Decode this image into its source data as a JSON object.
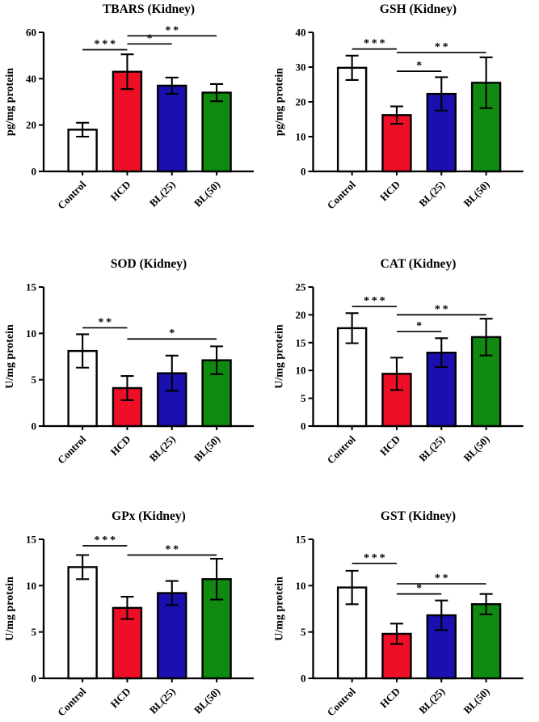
{
  "page": {
    "background": "#ffffff",
    "text_color": "#000000"
  },
  "figure": {
    "layout": "2x3 grid of bar charts",
    "bar_colors": [
      "#ffffff",
      "#ee0f26",
      "#1a10b0",
      "#108a10"
    ],
    "bar_border_color": "#000000",
    "error_bar_color": "#000000"
  },
  "chart_data": [
    {
      "type": "bar",
      "title": "TBARS (Kidney)",
      "xlabel": "",
      "ylabel": "pg/mg protein",
      "ylim": [
        0,
        60
      ],
      "yticks": [
        0,
        20,
        40,
        60
      ],
      "grid": "off",
      "legend": "none",
      "categories": [
        "Control",
        "HCD",
        "BL(25)",
        "BL(50)"
      ],
      "values": [
        18,
        43,
        37,
        34
      ],
      "errors": [
        3,
        7.5,
        3.5,
        3.7
      ],
      "significance": [
        {
          "from": 0,
          "to": 1,
          "label": "***",
          "y": 52.5
        },
        {
          "from": 1,
          "to": 2,
          "label": "*",
          "y": 55
        },
        {
          "from": 1,
          "to": 3,
          "label": "**",
          "y": 58.5
        }
      ]
    },
    {
      "type": "bar",
      "title": "GSH (Kidney)",
      "xlabel": "",
      "ylabel": "pg/mg protein",
      "ylim": [
        0,
        40
      ],
      "yticks": [
        0,
        10,
        20,
        30,
        40
      ],
      "grid": "off",
      "legend": "none",
      "categories": [
        "Control",
        "HCD",
        "BL(25)",
        "BL(50)"
      ],
      "values": [
        29.8,
        16.2,
        22.3,
        25.5
      ],
      "errors": [
        3.5,
        2.5,
        4.8,
        7.3
      ],
      "significance": [
        {
          "from": 0,
          "to": 1,
          "label": "***",
          "y": 35.2
        },
        {
          "from": 1,
          "to": 2,
          "label": "*",
          "y": 28.8
        },
        {
          "from": 1,
          "to": 3,
          "label": "**",
          "y": 34.2
        }
      ]
    },
    {
      "type": "bar",
      "title": "SOD (Kidney)",
      "xlabel": "",
      "ylabel": "U/mg protein",
      "ylim": [
        0,
        15
      ],
      "yticks": [
        0,
        5,
        10,
        15
      ],
      "grid": "off",
      "legend": "none",
      "categories": [
        "Control",
        "HCD",
        "BL(25)",
        "BL(50)"
      ],
      "values": [
        8.1,
        4.1,
        5.7,
        7.1
      ],
      "errors": [
        1.8,
        1.3,
        1.9,
        1.5
      ],
      "significance": [
        {
          "from": 0,
          "to": 1,
          "label": "**",
          "y": 10.6
        },
        {
          "from": 1,
          "to": 3,
          "label": "*",
          "y": 9.4
        }
      ]
    },
    {
      "type": "bar",
      "title": "CAT (Kidney)",
      "xlabel": "",
      "ylabel": "U/mg protein",
      "ylim": [
        0,
        25
      ],
      "yticks": [
        0,
        5,
        10,
        15,
        20,
        25
      ],
      "grid": "off",
      "legend": "none",
      "categories": [
        "Control",
        "HCD",
        "BL(25)",
        "BL(50)"
      ],
      "values": [
        17.6,
        9.4,
        13.2,
        16.0
      ],
      "errors": [
        2.7,
        2.9,
        2.6,
        3.3
      ],
      "significance": [
        {
          "from": 0,
          "to": 1,
          "label": "***",
          "y": 21.5
        },
        {
          "from": 1,
          "to": 2,
          "label": "*",
          "y": 17.0
        },
        {
          "from": 1,
          "to": 3,
          "label": "**",
          "y": 20.0
        }
      ]
    },
    {
      "type": "bar",
      "title": "GPx (Kidney)",
      "xlabel": "",
      "ylabel": "U/mg protein",
      "ylim": [
        0,
        15
      ],
      "yticks": [
        0,
        5,
        10,
        15
      ],
      "grid": "off",
      "legend": "none",
      "categories": [
        "Control",
        "HCD",
        "BL(25)",
        "BL(50)"
      ],
      "values": [
        12.0,
        7.6,
        9.2,
        10.7
      ],
      "errors": [
        1.3,
        1.2,
        1.3,
        2.2
      ],
      "significance": [
        {
          "from": 0,
          "to": 1,
          "label": "***",
          "y": 14.3
        },
        {
          "from": 1,
          "to": 3,
          "label": "**",
          "y": 13.3
        }
      ]
    },
    {
      "type": "bar",
      "title": "GST (Kidney)",
      "xlabel": "",
      "ylabel": "U/mg protein",
      "ylim": [
        0,
        15
      ],
      "yticks": [
        0,
        5,
        10,
        15
      ],
      "grid": "off",
      "legend": "none",
      "categories": [
        "Control",
        "HCD",
        "BL(25)",
        "BL(50)"
      ],
      "values": [
        9.8,
        4.8,
        6.8,
        8.0
      ],
      "errors": [
        1.8,
        1.1,
        1.6,
        1.1
      ],
      "significance": [
        {
          "from": 0,
          "to": 1,
          "label": "***",
          "y": 12.4
        },
        {
          "from": 1,
          "to": 2,
          "label": "*",
          "y": 9.1
        },
        {
          "from": 1,
          "to": 3,
          "label": "**",
          "y": 10.2
        }
      ]
    }
  ]
}
